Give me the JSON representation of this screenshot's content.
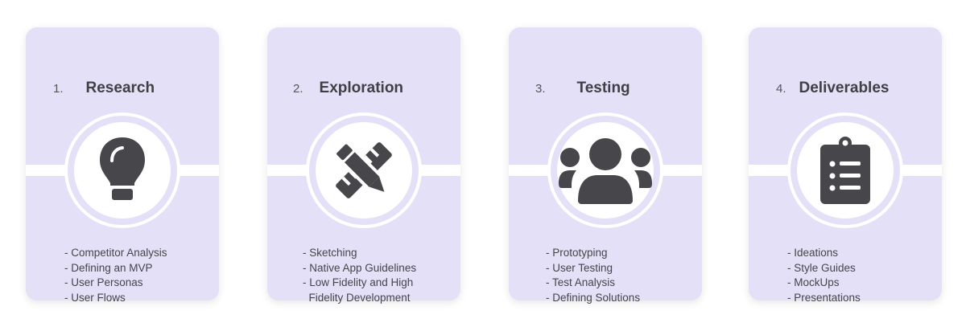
{
  "colors": {
    "card": "#e3e0f7",
    "icon": "#47474b",
    "text": "#45454a"
  },
  "cards": [
    {
      "number": "1.",
      "title": "Research",
      "icon": "lightbulb-icon",
      "items": [
        "- Competitor Analysis",
        "- Defining an MVP",
        "- User Personas",
        "- User Flows"
      ]
    },
    {
      "number": "2.",
      "title": "Exploration",
      "icon": "pencil-ruler-icon",
      "items": [
        "- Sketching",
        "- Native App Guidelines",
        "- Low Fidelity and High",
        "  Fidelity Development"
      ]
    },
    {
      "number": "3.",
      "title": "Testing",
      "icon": "users-icon",
      "items": [
        "- Prototyping",
        "- User Testing",
        "- Test Analysis",
        "- Defining Solutions"
      ]
    },
    {
      "number": "4.",
      "title": "Deliverables",
      "icon": "clipboard-list-icon",
      "items": [
        "- Ideations",
        "- Style Guides",
        "- MockUps",
        "- Presentations"
      ]
    }
  ]
}
